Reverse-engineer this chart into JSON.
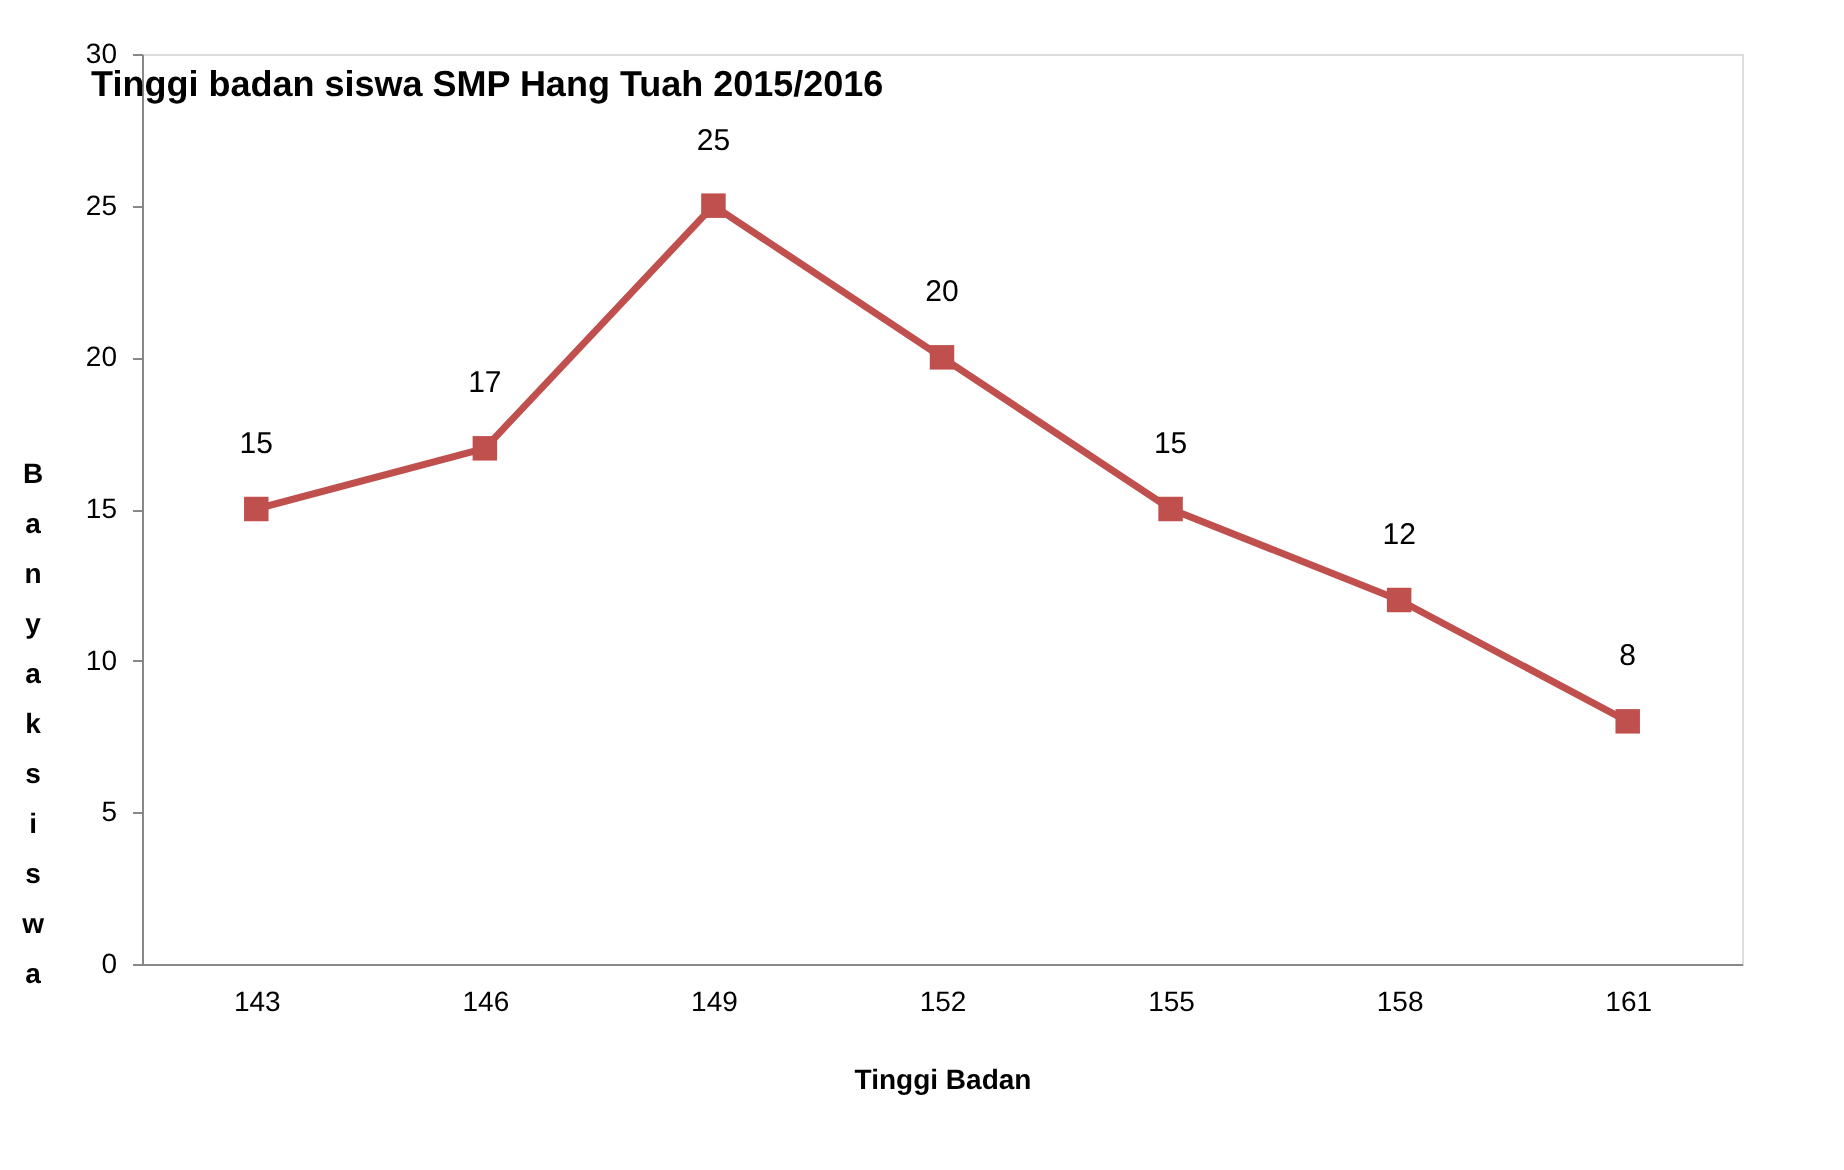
{
  "chart_data": {
    "type": "line",
    "title": "Tinggi badan siswa SMP Hang Tuah 2015/2016",
    "xlabel": "Tinggi Badan",
    "ylabel": "Banyak siswa",
    "categories": [
      "143",
      "146",
      "149",
      "152",
      "155",
      "158",
      "161"
    ],
    "series": [
      {
        "color": "#c0504d",
        "values": [
          15,
          17,
          25,
          20,
          15,
          12,
          8
        ]
      }
    ],
    "ylim": [
      0,
      30
    ],
    "yticks": [
      0,
      5,
      10,
      15,
      20,
      25,
      30
    ],
    "grid": false,
    "legend": false,
    "marker": "square",
    "line_style": "solid",
    "data_labels": true
  }
}
